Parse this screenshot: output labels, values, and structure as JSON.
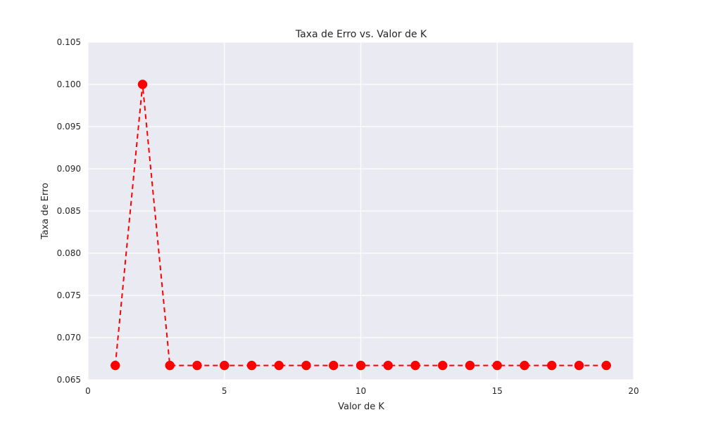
{
  "chart_data": {
    "type": "line",
    "title": "Taxa de Erro vs. Valor de K",
    "xlabel": "Valor de K",
    "ylabel": "Taxa de Erro",
    "xlim": [
      0,
      20
    ],
    "ylim": [
      0.065,
      0.105
    ],
    "x_ticks": [
      0,
      5,
      10,
      15,
      20
    ],
    "y_ticks": [
      0.065,
      0.07,
      0.075,
      0.08,
      0.085,
      0.09,
      0.095,
      0.1,
      0.105
    ],
    "x_tick_labels": [
      "0",
      "5",
      "10",
      "15",
      "20"
    ],
    "y_tick_labels": [
      "0.065",
      "0.070",
      "0.075",
      "0.080",
      "0.085",
      "0.090",
      "0.095",
      "0.100",
      "0.105"
    ],
    "grid": true,
    "series": [
      {
        "color": "#ff0000",
        "line_style": "dashed",
        "marker": "circle",
        "x": [
          1,
          2,
          3,
          4,
          5,
          6,
          7,
          8,
          9,
          10,
          11,
          12,
          13,
          14,
          15,
          16,
          17,
          18,
          19
        ],
        "y": [
          0.0667,
          0.1,
          0.0667,
          0.0667,
          0.0667,
          0.0667,
          0.0667,
          0.0667,
          0.0667,
          0.0667,
          0.0667,
          0.0667,
          0.0667,
          0.0667,
          0.0667,
          0.0667,
          0.0667,
          0.0667,
          0.0667
        ]
      }
    ]
  },
  "colors": {
    "plot_background": "#eaeaf2",
    "grid": "#ffffff",
    "text": "#262626"
  }
}
